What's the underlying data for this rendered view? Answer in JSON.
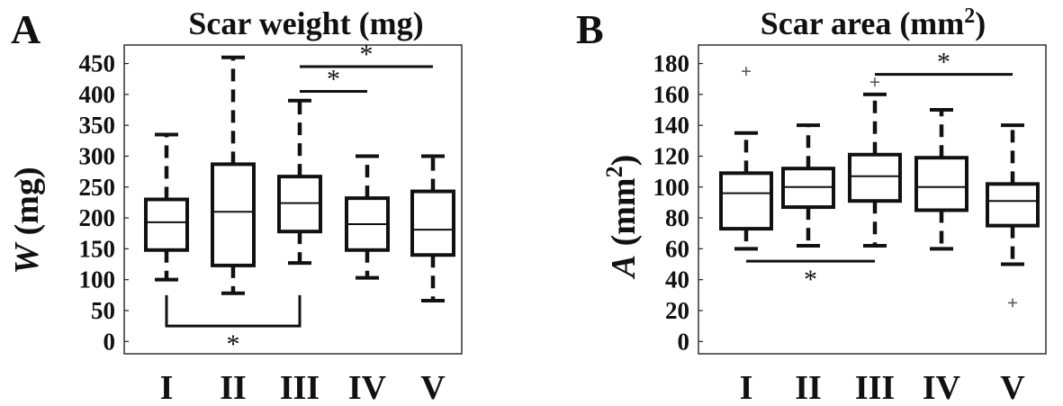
{
  "chart_data": [
    {
      "type": "box",
      "panel_label": "A",
      "title_main": "Scar weight (mg)",
      "title_sup": "",
      "ylabel_italic": "W",
      "ylabel_rest": " (mg)",
      "ylim": [
        -20,
        480
      ],
      "yticks": [
        0,
        50,
        100,
        150,
        200,
        250,
        300,
        350,
        400,
        450
      ],
      "categories": [
        "I",
        "II",
        "III",
        "IV",
        "V"
      ],
      "boxes": [
        {
          "min": 100,
          "q1": 148,
          "median": 193,
          "q3": 230,
          "max": 335
        },
        {
          "min": 78,
          "q1": 123,
          "median": 210,
          "q3": 287,
          "max": 460
        },
        {
          "min": 127,
          "q1": 178,
          "median": 224,
          "q3": 267,
          "max": 390
        },
        {
          "min": 103,
          "q1": 148,
          "median": 190,
          "q3": 232,
          "max": 300
        },
        {
          "min": 66,
          "q1": 140,
          "median": 181,
          "q3": 243,
          "max": 300
        }
      ],
      "outliers": [],
      "significance": [
        {
          "from": 2,
          "to": 4,
          "y": 445,
          "label": "*",
          "position": "above"
        },
        {
          "from": 2,
          "to": 3,
          "y": 405,
          "label": "*",
          "position": "above"
        },
        {
          "from": 0,
          "to": 2,
          "y": 25,
          "label": "*",
          "position": "below",
          "bracket_up_to": 75
        }
      ]
    },
    {
      "type": "box",
      "panel_label": "B",
      "title_main": "Scar area (mm",
      "title_sup": "2",
      "title_end": ")",
      "ylabel_italic": "A",
      "ylabel_rest": " (mm",
      "ylabel_sup": "2",
      "ylabel_end": ")",
      "ylim": [
        -8,
        192
      ],
      "yticks": [
        0,
        20,
        40,
        60,
        80,
        100,
        120,
        140,
        160,
        180
      ],
      "categories": [
        "I",
        "II",
        "III",
        "IV",
        "V"
      ],
      "boxes": [
        {
          "min": 60,
          "q1": 73,
          "median": 96,
          "q3": 109,
          "max": 135
        },
        {
          "min": 62,
          "q1": 87,
          "median": 100,
          "q3": 112,
          "max": 140
        },
        {
          "min": 62,
          "q1": 91,
          "median": 107,
          "q3": 121,
          "max": 160
        },
        {
          "min": 60,
          "q1": 85,
          "median": 100,
          "q3": 119,
          "max": 150
        },
        {
          "min": 50,
          "q1": 75,
          "median": 91,
          "q3": 102,
          "max": 140
        }
      ],
      "outliers": [
        {
          "cat": 0,
          "y": 175
        },
        {
          "cat": 2,
          "y": 168
        },
        {
          "cat": 4,
          "y": 25
        }
      ],
      "significance": [
        {
          "from": 2,
          "to": 4,
          "y": 173,
          "label": "*",
          "position": "above"
        },
        {
          "from": 0,
          "to": 2,
          "y": 52,
          "label": "*",
          "position": "below"
        }
      ]
    }
  ]
}
